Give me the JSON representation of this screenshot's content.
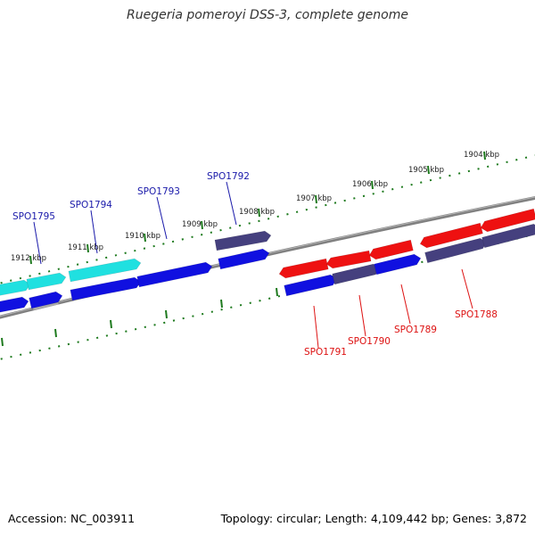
{
  "title": "Ruegeria pomeroyi DSS-3, complete genome",
  "footer": {
    "accession": "Accession: NC_003911",
    "topology": "Topology: circular; Length: 4,109,442 bp; Genes: 3,872"
  },
  "colors": {
    "background": "#ffffff",
    "backbone": "#808080",
    "tick": "#1e7a1e",
    "forward_label": "#1a1aaa",
    "reverse_label": "#dd1111",
    "gene_blue": "#1010e0",
    "gene_cyan": "#20e0e0",
    "gene_slate": "#45407e",
    "gene_red": "#ee1111"
  },
  "ticks": [
    {
      "label": "1904 kbp"
    },
    {
      "label": "1905 kbp"
    },
    {
      "label": "1906 kbp"
    },
    {
      "label": "1907 kbp"
    },
    {
      "label": "1908 kbp"
    },
    {
      "label": "1909 kbp"
    },
    {
      "label": "1910 kbp"
    },
    {
      "label": "1911 kbp"
    },
    {
      "label": "1912 kbp"
    }
  ],
  "gene_labels": {
    "forward": [
      "SPO1792",
      "SPO1793",
      "SPO1794",
      "SPO1795"
    ],
    "reverse": [
      "SPO1788",
      "SPO1789",
      "SPO1790",
      "SPO1791"
    ]
  }
}
